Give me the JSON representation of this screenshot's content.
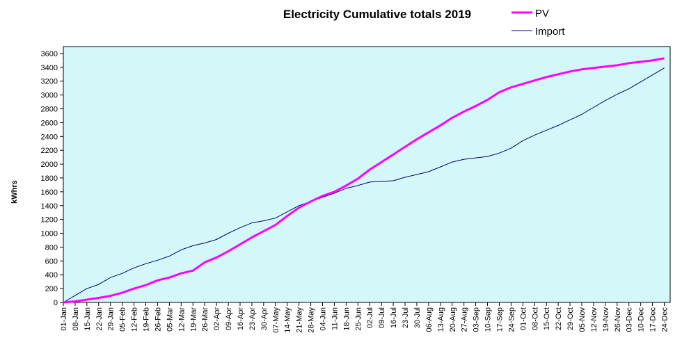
{
  "chart_data": {
    "type": "line",
    "title": "Electricity Cumulative totals 2019",
    "xlabel": "",
    "ylabel": "kWhrs",
    "ylim": [
      0,
      3700
    ],
    "yticks": [
      0,
      200,
      400,
      600,
      800,
      1000,
      1200,
      1400,
      1600,
      1800,
      2000,
      2200,
      2400,
      2600,
      2800,
      3000,
      3200,
      3400,
      3600
    ],
    "grid": false,
    "background": "#d4f7fa",
    "legend": "top-right",
    "categories": [
      "01-Jan",
      "08-Jan",
      "15-Jan",
      "22-Jan",
      "29-Jan",
      "05-Feb",
      "12-Feb",
      "19-Feb",
      "26-Feb",
      "05-Mar",
      "12-Mar",
      "19-Mar",
      "26-Mar",
      "02-Apr",
      "09-Apr",
      "16-Apr",
      "23-Apr",
      "30-Apr",
      "07-May",
      "14-May",
      "21-May",
      "28-May",
      "04-Jun",
      "11-Jun",
      "18-Jun",
      "25-Jun",
      "02-Jul",
      "09-Jul",
      "16-Jul",
      "23-Jul",
      "30-Jul",
      "06-Aug",
      "13-Aug",
      "20-Aug",
      "27-Aug",
      "03-Sep",
      "10-Sep",
      "17-Sep",
      "24-Sep",
      "01-Oct",
      "08-Oct",
      "15-Oct",
      "22-Oct",
      "29-Oct",
      "05-Nov",
      "12-Nov",
      "19-Nov",
      "26-Nov",
      "03-Dec",
      "10-Dec",
      "17-Dec",
      "24-Dec"
    ],
    "series": [
      {
        "name": "PV",
        "color": "#ff00ff",
        "values": [
          0,
          15,
          40,
          65,
          95,
          140,
          200,
          250,
          320,
          360,
          420,
          460,
          580,
          650,
          740,
          840,
          940,
          1030,
          1120,
          1250,
          1370,
          1460,
          1540,
          1600,
          1690,
          1790,
          1920,
          2030,
          2140,
          2250,
          2360,
          2460,
          2560,
          2670,
          2760,
          2840,
          2930,
          3040,
          3110,
          3160,
          3210,
          3260,
          3300,
          3340,
          3370,
          3390,
          3410,
          3430,
          3460,
          3480,
          3500,
          3530
        ]
      },
      {
        "name": "Import",
        "color": "#000066",
        "values": [
          0,
          100,
          200,
          260,
          360,
          420,
          500,
          560,
          610,
          670,
          760,
          820,
          860,
          910,
          1000,
          1080,
          1150,
          1180,
          1220,
          1310,
          1400,
          1460,
          1520,
          1580,
          1650,
          1690,
          1740,
          1750,
          1760,
          1810,
          1850,
          1890,
          1960,
          2030,
          2070,
          2090,
          2110,
          2160,
          2230,
          2340,
          2420,
          2490,
          2560,
          2640,
          2720,
          2820,
          2920,
          3010,
          3090,
          3190,
          3290,
          3390
        ]
      }
    ]
  }
}
